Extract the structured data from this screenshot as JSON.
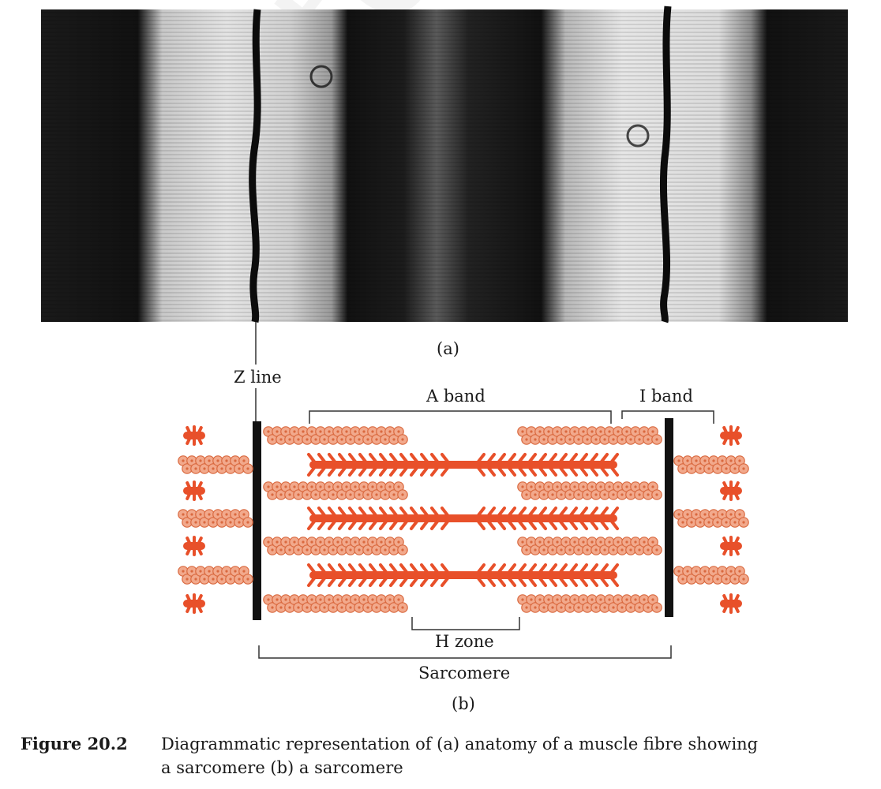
{
  "watermark": "not to be © N",
  "labels": {
    "panel_a": "(a)",
    "panel_b": "(b)",
    "z_line": "Z line",
    "a_band": "A band",
    "i_band": "I band",
    "h_zone": "H zone",
    "sarcomere": "Sarcomere"
  },
  "caption": {
    "figure_number": "Figure 20.2",
    "line1": "Diagrammatic representation of (a) anatomy of a muscle fibre showing",
    "line2": "a sarcomere (b) a sarcomere"
  },
  "colors": {
    "actin": "#f2a98c",
    "actin_outline": "#d9693f",
    "myosin": "#e8502a",
    "z_disc": "#111111",
    "micrograph_dark": "#111111",
    "micrograph_light": "#d8d8d8"
  }
}
